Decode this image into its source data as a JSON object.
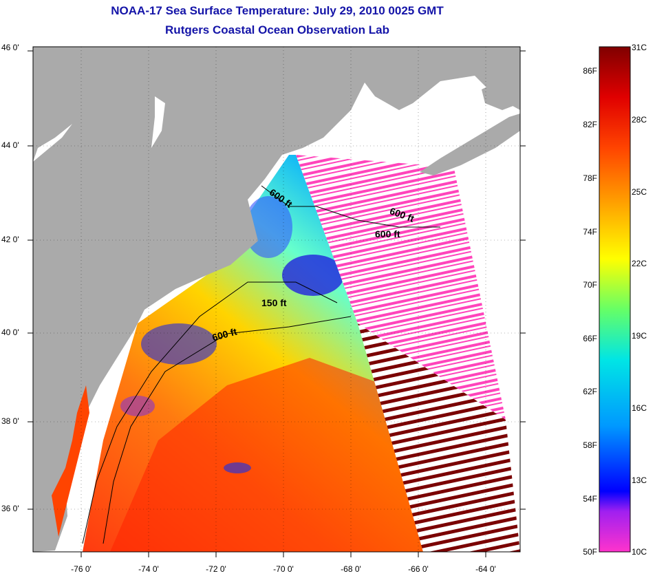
{
  "title_line1": "NOAA-17 Sea Surface Temperature:  July 29, 2010 0025 GMT",
  "title_line2": "Rutgers Coastal Ocean Observation Lab",
  "map": {
    "lat_labels": [
      "46 0'",
      "44 0'",
      "42 0'",
      "40 0'",
      "38 0'",
      "36 0'"
    ],
    "lon_labels": [
      "-76 0'",
      "-74 0'",
      "-72 0'",
      "-70 0'",
      "-68 0'",
      "-66 0'",
      "-64 0'"
    ],
    "contour_labels": [
      "600 ft",
      "600 ft",
      "600 ft",
      "150 ft",
      "600 ft"
    ],
    "colors": {
      "land": "#aaaaaa",
      "cloud": "#ffffff",
      "cold": "#1a1aff",
      "warm": "#ff3300"
    }
  },
  "colorbar": {
    "fahrenheit_labels": [
      "86F",
      "82F",
      "78F",
      "74F",
      "70F",
      "66F",
      "62F",
      "58F",
      "54F",
      "50F"
    ],
    "celsius_labels": [
      "31C",
      "28C",
      "25C",
      "22C",
      "19C",
      "16C",
      "13C",
      "10C"
    ],
    "stops": [
      "#ff33cc",
      "#8a2be2",
      "#0000ff",
      "#0099ff",
      "#00e5e5",
      "#66ff66",
      "#ffff00",
      "#ffaa00",
      "#ff5500",
      "#e60000",
      "#800000"
    ]
  }
}
